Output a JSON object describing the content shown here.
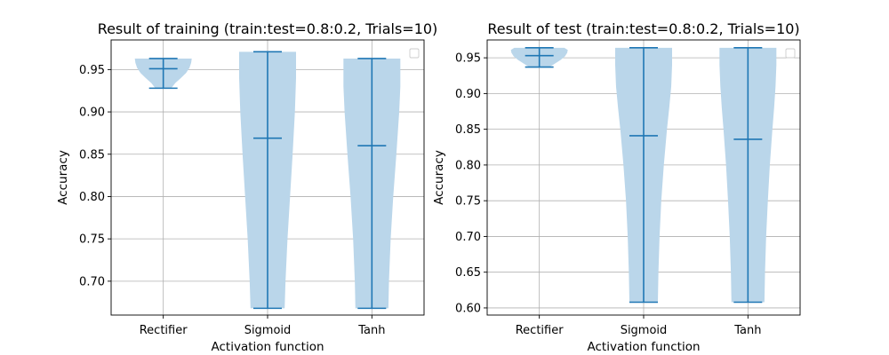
{
  "chart_data": [
    {
      "type": "violin",
      "title": "Result of training (train:test=0.8:0.2, Trials=10)",
      "xlabel": "Activation function",
      "ylabel": "Accuracy",
      "categories": [
        "Rectifier",
        "Sigmoid",
        "Tanh"
      ],
      "ylim": [
        0.66,
        0.985
      ],
      "yticks": [
        0.7,
        0.75,
        0.8,
        0.85,
        0.9,
        0.95
      ],
      "ytick_labels": [
        "0.70",
        "0.75",
        "0.80",
        "0.85",
        "0.90",
        "0.95"
      ],
      "grid": true,
      "legend": "top-right",
      "violin_color": "#bad6ea",
      "line_color": "#1f77b4",
      "series": [
        {
          "category": "Rectifier",
          "min": 0.928,
          "mean": 0.951,
          "max": 0.963,
          "profile": [
            [
              0.928,
              0.28
            ],
            [
              0.934,
              0.42
            ],
            [
              0.94,
              0.62
            ],
            [
              0.946,
              0.8
            ],
            [
              0.952,
              0.92
            ],
            [
              0.958,
              0.98
            ],
            [
              0.963,
              1.0
            ]
          ]
        },
        {
          "category": "Sigmoid",
          "min": 0.668,
          "mean": 0.869,
          "max": 0.971,
          "profile": [
            [
              0.668,
              0.6
            ],
            [
              0.7,
              0.63
            ],
            [
              0.75,
              0.7
            ],
            [
              0.8,
              0.79
            ],
            [
              0.85,
              0.88
            ],
            [
              0.9,
              0.96
            ],
            [
              0.94,
              1.0
            ],
            [
              0.971,
              1.0
            ]
          ]
        },
        {
          "category": "Tanh",
          "min": 0.668,
          "mean": 0.86,
          "max": 0.963,
          "profile": [
            [
              0.668,
              0.58
            ],
            [
              0.7,
              0.6
            ],
            [
              0.75,
              0.66
            ],
            [
              0.8,
              0.75
            ],
            [
              0.85,
              0.86
            ],
            [
              0.9,
              0.96
            ],
            [
              0.93,
              1.0
            ],
            [
              0.963,
              1.0
            ]
          ]
        }
      ]
    },
    {
      "type": "violin",
      "title": "Result of test (train:test=0.8:0.2, Trials=10)",
      "xlabel": "Activation function",
      "ylabel": "Accuracy",
      "categories": [
        "Rectifier",
        "Sigmoid",
        "Tanh"
      ],
      "ylim": [
        0.59,
        0.975
      ],
      "yticks": [
        0.6,
        0.65,
        0.7,
        0.75,
        0.8,
        0.85,
        0.9,
        0.95
      ],
      "ytick_labels": [
        "0.60",
        "0.65",
        "0.70",
        "0.75",
        "0.80",
        "0.85",
        "0.90",
        "0.95"
      ],
      "grid": true,
      "legend": "top-right",
      "violin_color": "#bad6ea",
      "line_color": "#1f77b4",
      "series": [
        {
          "category": "Rectifier",
          "min": 0.937,
          "mean": 0.953,
          "max": 0.964,
          "profile": [
            [
              0.937,
              0.35
            ],
            [
              0.942,
              0.55
            ],
            [
              0.947,
              0.75
            ],
            [
              0.952,
              0.9
            ],
            [
              0.957,
              0.98
            ],
            [
              0.961,
              1.0
            ],
            [
              0.964,
              0.88
            ]
          ]
        },
        {
          "category": "Sigmoid",
          "min": 0.608,
          "mean": 0.841,
          "max": 0.964,
          "profile": [
            [
              0.608,
              0.5
            ],
            [
              0.65,
              0.52
            ],
            [
              0.7,
              0.56
            ],
            [
              0.75,
              0.62
            ],
            [
              0.8,
              0.71
            ],
            [
              0.85,
              0.82
            ],
            [
              0.88,
              0.9
            ],
            [
              0.91,
              0.97
            ],
            [
              0.94,
              1.0
            ],
            [
              0.964,
              1.0
            ]
          ]
        },
        {
          "category": "Tanh",
          "min": 0.608,
          "mean": 0.836,
          "max": 0.964,
          "profile": [
            [
              0.608,
              0.58
            ],
            [
              0.65,
              0.6
            ],
            [
              0.7,
              0.64
            ],
            [
              0.75,
              0.7
            ],
            [
              0.8,
              0.77
            ],
            [
              0.85,
              0.86
            ],
            [
              0.88,
              0.92
            ],
            [
              0.91,
              0.97
            ],
            [
              0.94,
              1.0
            ],
            [
              0.964,
              1.0
            ]
          ]
        }
      ]
    }
  ]
}
